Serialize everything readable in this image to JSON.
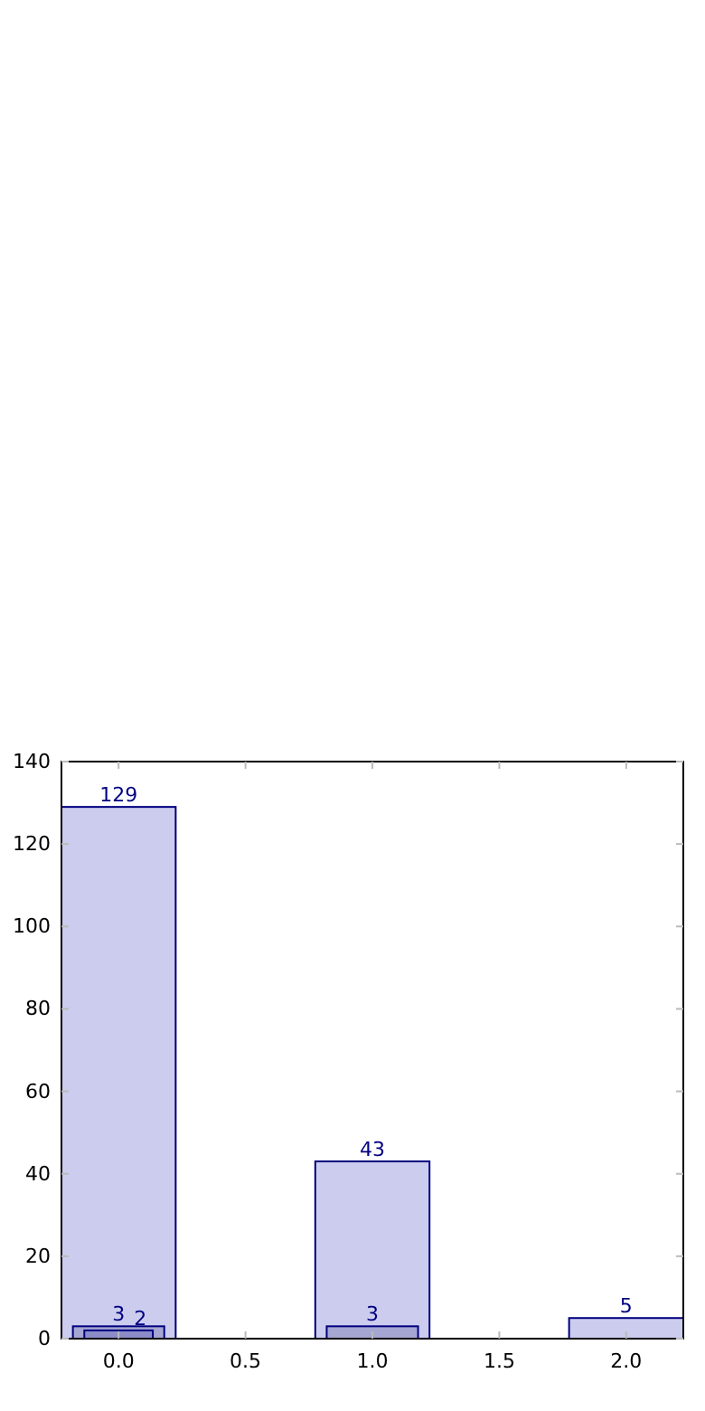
{
  "chart_data": {
    "type": "bar",
    "x": [
      0,
      1,
      2
    ],
    "series": [
      {
        "color": "#ccccee",
        "values": [
          129,
          43,
          5
        ]
      },
      {
        "color": "#a6a6d2",
        "values": [
          3,
          3,
          null
        ]
      },
      {
        "color": "#8c8cc8",
        "values": [
          2,
          null,
          null
        ]
      }
    ],
    "xlim": [
      -0.225,
      2.225
    ],
    "xticks": [
      {
        "value": 0,
        "label": "0.0"
      },
      {
        "value": 0.5,
        "label": "0.5"
      },
      {
        "value": 1,
        "label": "1.0"
      },
      {
        "value": 1.5,
        "label": "1.5"
      },
      {
        "value": 2,
        "label": "2.0"
      }
    ],
    "ylim": [
      0,
      140
    ],
    "yticks": [
      0,
      20,
      40,
      60,
      80,
      100,
      120,
      140
    ],
    "data_labels": true,
    "grid": false
  }
}
